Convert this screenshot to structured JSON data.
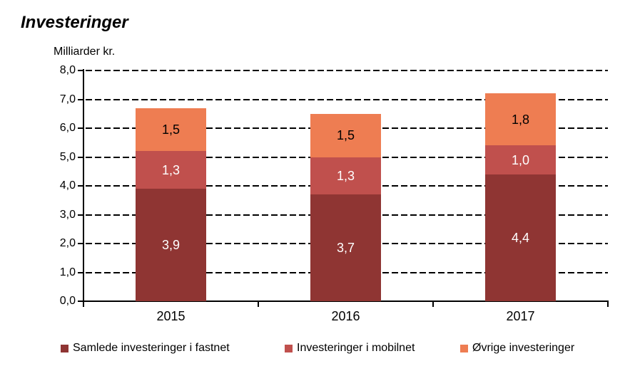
{
  "title": "Investeringer",
  "axis_title": "Milliarder kr.",
  "chart_data": {
    "type": "bar",
    "stacked": true,
    "title": "Investeringer",
    "ylabel": "Milliarder kr.",
    "xlabel": "",
    "categories": [
      "2015",
      "2016",
      "2017"
    ],
    "series": [
      {
        "name": "Samlede investeringer i fastnet",
        "color": "#8F3533",
        "label_color": "#ffffff",
        "values": [
          3.9,
          3.7,
          4.4
        ],
        "labels": [
          "3,9",
          "3,7",
          "4,4"
        ]
      },
      {
        "name": "Investeringer i mobilnet",
        "color": "#C0504D",
        "label_color": "#ffffff",
        "values": [
          1.3,
          1.3,
          1.0
        ],
        "labels": [
          "1,3",
          "1,3",
          "1,0"
        ]
      },
      {
        "name": "Øvrige investeringer",
        "color": "#EE7D52",
        "label_color": "#000000",
        "values": [
          1.5,
          1.5,
          1.8
        ],
        "labels": [
          "1,5",
          "1,5",
          "1,8"
        ]
      }
    ],
    "totals": [
      6.7,
      6.5,
      7.2
    ],
    "ylim": [
      0,
      8
    ],
    "ytick_step": 1.0,
    "ytick_labels": [
      "0,0",
      "1,0",
      "2,0",
      "3,0",
      "4,0",
      "5,0",
      "6,0",
      "7,0",
      "8,0"
    ],
    "grid": "horizontal-dashed",
    "legend_position": "bottom"
  }
}
